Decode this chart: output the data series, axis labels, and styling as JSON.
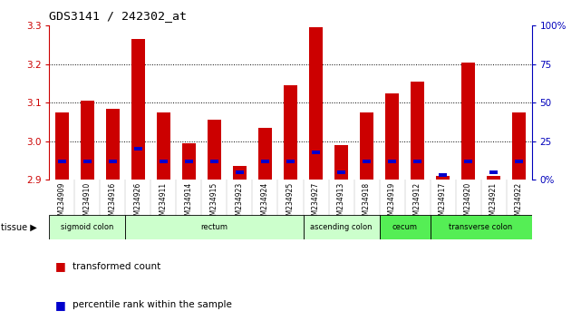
{
  "title": "GDS3141 / 242302_at",
  "samples": [
    "GSM234909",
    "GSM234910",
    "GSM234916",
    "GSM234926",
    "GSM234911",
    "GSM234914",
    "GSM234915",
    "GSM234923",
    "GSM234924",
    "GSM234925",
    "GSM234927",
    "GSM234913",
    "GSM234918",
    "GSM234919",
    "GSM234912",
    "GSM234917",
    "GSM234920",
    "GSM234921",
    "GSM234922"
  ],
  "red_values": [
    3.075,
    3.105,
    3.085,
    3.265,
    3.075,
    2.995,
    3.055,
    2.935,
    3.035,
    3.145,
    3.295,
    2.99,
    3.075,
    3.125,
    3.155,
    2.91,
    3.205,
    2.91,
    3.075
  ],
  "blue_pct": [
    12,
    12,
    12,
    20,
    12,
    12,
    12,
    5,
    12,
    12,
    18,
    5,
    12,
    12,
    12,
    3,
    12,
    5,
    12
  ],
  "ylim_left": [
    2.9,
    3.3
  ],
  "yticks_left": [
    2.9,
    3.0,
    3.1,
    3.2,
    3.3
  ],
  "yticks_right": [
    0,
    25,
    50,
    75,
    100
  ],
  "ytick_labels_right": [
    "0%",
    "25",
    "50",
    "75",
    "100%"
  ],
  "group_info": [
    {
      "label": "sigmoid colon",
      "indices": [
        0,
        1,
        2
      ],
      "color": "#ccffcc"
    },
    {
      "label": "rectum",
      "indices": [
        3,
        4,
        5,
        6,
        7,
        8,
        9
      ],
      "color": "#ccffcc"
    },
    {
      "label": "ascending colon",
      "indices": [
        10,
        11,
        12
      ],
      "color": "#ccffcc"
    },
    {
      "label": "cecum",
      "indices": [
        13,
        14
      ],
      "color": "#55ee55"
    },
    {
      "label": "transverse colon",
      "indices": [
        15,
        16,
        17,
        18
      ],
      "color": "#55ee55"
    }
  ],
  "bar_color": "#cc0000",
  "blue_color": "#0000cc",
  "bar_bottom": 2.9,
  "bar_width": 0.55,
  "tick_label_color_left": "#cc0000",
  "tick_label_color_right": "#0000bb",
  "grid_lines": [
    3.0,
    3.1,
    3.2
  ]
}
